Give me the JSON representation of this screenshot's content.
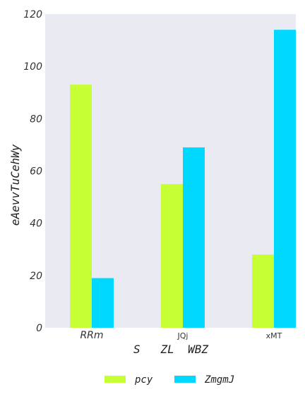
{
  "chart_data": {
    "type": "bar",
    "categories": [
      "RRm",
      "JQj",
      "xMT"
    ],
    "series": [
      {
        "name": "pcy",
        "values": [
          93,
          55,
          28
        ],
        "color": "#c6ff33"
      },
      {
        "name": "ZmgmJ",
        "values": [
          19,
          69,
          114
        ],
        "color": "#00d8ff"
      }
    ],
    "xlabel": "S   ZL  WBZ",
    "ylabel": "eAevvTuCehWy",
    "ylim": [
      0,
      120
    ],
    "yticks": [
      0,
      20,
      40,
      60,
      80,
      100,
      120
    ],
    "grid": false,
    "legend": "bottom-center",
    "background": "#eaeaf2"
  }
}
